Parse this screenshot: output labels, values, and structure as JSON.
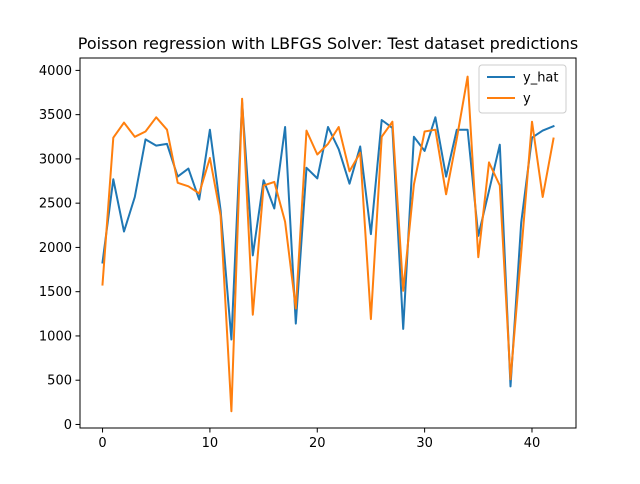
{
  "chart_data": {
    "type": "line",
    "title": "Poisson regression with LBFGS Solver: Test dataset predictions",
    "xlabel": "",
    "ylabel": "",
    "xlim": [
      -2.1,
      44.1
    ],
    "ylim": [
      -40,
      4140
    ],
    "x_ticks": [
      0,
      10,
      20,
      30,
      40
    ],
    "y_ticks": [
      0,
      500,
      1000,
      1500,
      2000,
      2500,
      3000,
      3500,
      4000
    ],
    "grid": false,
    "legend_position": "top-right",
    "x": [
      0,
      1,
      2,
      3,
      4,
      5,
      6,
      7,
      8,
      9,
      10,
      11,
      12,
      13,
      14,
      15,
      16,
      17,
      18,
      19,
      20,
      21,
      22,
      23,
      24,
      25,
      26,
      27,
      28,
      29,
      30,
      31,
      32,
      33,
      34,
      35,
      36,
      37,
      38,
      39,
      40,
      41,
      42
    ],
    "series": [
      {
        "name": "y_hat",
        "color": "#1f77b4",
        "values": [
          1830,
          2770,
          2180,
          2570,
          3220,
          3150,
          3170,
          2800,
          2890,
          2540,
          3330,
          2420,
          960,
          3640,
          1910,
          2760,
          2440,
          3360,
          1140,
          2900,
          2780,
          3360,
          3110,
          2720,
          3140,
          2150,
          3440,
          3350,
          1080,
          3250,
          3090,
          3470,
          2800,
          3330,
          3330,
          2130,
          2640,
          3160,
          430,
          2280,
          3240,
          3320,
          3370
        ]
      },
      {
        "name": "y",
        "color": "#ff7f0e",
        "values": [
          1580,
          3240,
          3410,
          3250,
          3310,
          3470,
          3330,
          2730,
          2690,
          2610,
          3010,
          2360,
          150,
          3680,
          1240,
          2700,
          2740,
          2290,
          1310,
          3320,
          3050,
          3170,
          3360,
          2860,
          3070,
          1190,
          3250,
          3420,
          1510,
          2710,
          3310,
          3330,
          2600,
          3230,
          3930,
          1890,
          2960,
          2700,
          510,
          1940,
          3420,
          2570,
          3230
        ]
      }
    ]
  }
}
